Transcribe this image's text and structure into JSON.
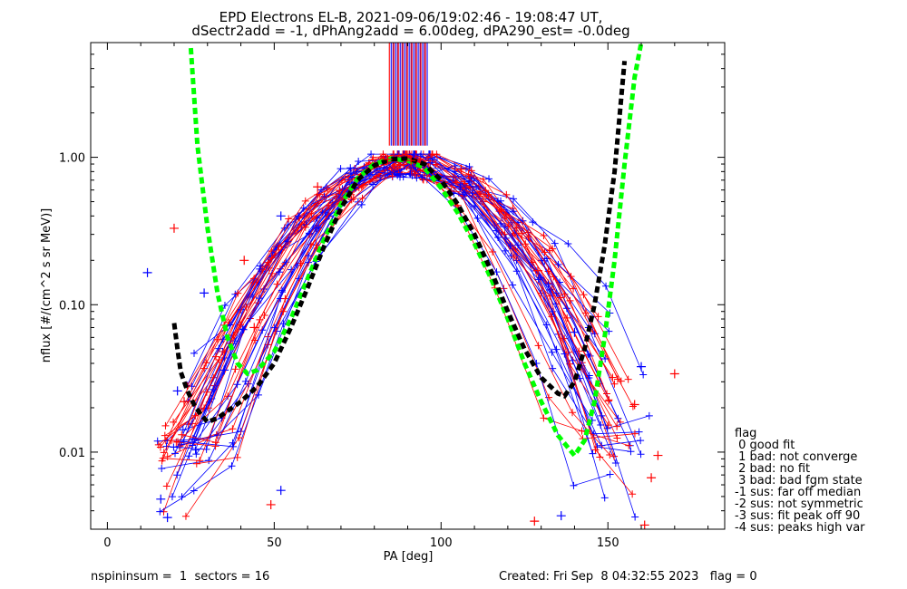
{
  "chart_data": {
    "type": "line",
    "title": "EPD Electrons EL-B, 2021-09-06/19:02:46 - 19:08:47 UT,",
    "subtitle": "dSectr2add = -1, dPhAng2add = 6.00deg, dPA290_est=  -0.0deg",
    "xlabel": "PA [deg]",
    "ylabel": "nflux [#/(cm^2 s sr MeV)]",
    "xlim": [
      -5,
      185
    ],
    "ylim": [
      0.003,
      6.0
    ],
    "y_scale": "log",
    "x_ticks": [
      0,
      50,
      100,
      150
    ],
    "x_tick_labels": [
      "0",
      "50",
      "100",
      "150"
    ],
    "y_ticks": [
      0.01,
      0.1,
      1.0
    ],
    "y_tick_labels": [
      "0.01",
      "0.10",
      "1.00"
    ],
    "colors": {
      "blue": "#0000ff",
      "red": "#ff0000",
      "green": "#00ff00",
      "black": "#000000",
      "purple": "#7f007f"
    },
    "series": [
      {
        "color": "green",
        "style": "dashed",
        "x": [
          25,
          27,
          30,
          33,
          36,
          39,
          42,
          45,
          50,
          55,
          60,
          65,
          70,
          75,
          80,
          85,
          90,
          95,
          100,
          105,
          110,
          115,
          120,
          125,
          130,
          135,
          140,
          143,
          146,
          149,
          152,
          155,
          158,
          160
        ],
        "y": [
          5.5,
          1.2,
          0.33,
          0.12,
          0.06,
          0.04,
          0.034,
          0.036,
          0.048,
          0.08,
          0.15,
          0.28,
          0.48,
          0.72,
          0.9,
          0.98,
          0.95,
          0.85,
          0.62,
          0.42,
          0.26,
          0.15,
          0.08,
          0.04,
          0.022,
          0.013,
          0.0095,
          0.012,
          0.022,
          0.06,
          0.2,
          0.9,
          3.5,
          6.0
        ]
      },
      {
        "color": "black",
        "style": "dashed",
        "x": [
          20,
          21,
          22,
          24,
          26,
          28,
          30,
          33,
          36,
          40,
          45,
          50,
          55,
          60,
          65,
          70,
          75,
          80,
          85,
          90,
          95,
          100,
          105,
          110,
          115,
          120,
          125,
          130,
          135,
          137,
          140,
          143,
          146,
          149,
          152,
          155
        ],
        "y": [
          0.075,
          0.05,
          0.035,
          0.026,
          0.021,
          0.018,
          0.016,
          0.017,
          0.019,
          0.022,
          0.028,
          0.04,
          0.07,
          0.13,
          0.25,
          0.45,
          0.7,
          0.88,
          0.97,
          0.98,
          0.9,
          0.7,
          0.48,
          0.3,
          0.17,
          0.09,
          0.05,
          0.032,
          0.025,
          0.024,
          0.03,
          0.05,
          0.1,
          0.25,
          0.8,
          4.5
        ]
      },
      {
        "color": "red",
        "style": "point",
        "x": [
          84
        ],
        "y": [
          0.97
        ]
      },
      {
        "color": "red",
        "style": "point",
        "x": [
          91
        ],
        "y": [
          0.95
        ]
      },
      {
        "color": "blue",
        "style": "point",
        "x": [
          12
        ],
        "y": [
          0.165
        ]
      },
      {
        "color": "blue",
        "style": "point",
        "x": [
          29
        ],
        "y": [
          0.12
        ]
      },
      {
        "color": "red",
        "style": "point",
        "x": [
          20
        ],
        "y": [
          0.33
        ]
      },
      {
        "color": "red",
        "style": "point",
        "x": [
          41
        ],
        "y": [
          0.2
        ]
      },
      {
        "color": "blue",
        "style": "point",
        "x": [
          52
        ],
        "y": [
          0.4
        ]
      },
      {
        "color": "blue",
        "style": "point",
        "x": [
          73
        ],
        "y": [
          0.78
        ]
      },
      {
        "color": "red",
        "style": "point",
        "x": [
          63
        ],
        "y": [
          0.63
        ]
      },
      {
        "color": "red",
        "style": "point",
        "x": [
          106
        ],
        "y": [
          0.83
        ]
      },
      {
        "color": "red",
        "style": "point",
        "x": [
          129
        ],
        "y": [
          0.17
        ]
      },
      {
        "color": "red",
        "style": "point",
        "x": [
          170
        ],
        "y": [
          0.034
        ]
      },
      {
        "color": "blue",
        "style": "point",
        "x": [
          160
        ],
        "y": [
          0.038
        ]
      },
      {
        "color": "blue",
        "style": "point",
        "x": [
          140
        ],
        "y": [
          0.065
        ]
      },
      {
        "color": "red",
        "style": "point",
        "x": [
          158
        ],
        "y": [
          0.021
        ]
      },
      {
        "color": "red",
        "style": "point",
        "x": [
          165
        ],
        "y": [
          0.0095
        ]
      },
      {
        "color": "red",
        "style": "point",
        "x": [
          163
        ],
        "y": [
          0.0067
        ]
      },
      {
        "color": "red",
        "style": "point",
        "x": [
          161
        ],
        "y": [
          0.0032
        ]
      },
      {
        "color": "blue",
        "style": "point",
        "x": [
          136
        ],
        "y": [
          0.0037
        ]
      },
      {
        "color": "red",
        "style": "point",
        "x": [
          128
        ],
        "y": [
          0.0034
        ]
      },
      {
        "color": "blue",
        "style": "point",
        "x": [
          18
        ],
        "y": [
          0.0036
        ]
      },
      {
        "color": "blue",
        "style": "point",
        "x": [
          16
        ],
        "y": [
          0.0048
        ]
      },
      {
        "color": "blue",
        "style": "point",
        "x": [
          21
        ],
        "y": [
          0.026
        ]
      },
      {
        "color": "red",
        "style": "point",
        "x": [
          23
        ],
        "y": [
          0.022
        ]
      },
      {
        "color": "blue",
        "style": "point",
        "x": [
          35
        ],
        "y": [
          0.036
        ]
      },
      {
        "color": "red",
        "style": "point",
        "x": [
          44
        ],
        "y": [
          0.07
        ]
      },
      {
        "color": "blue",
        "style": "point",
        "x": [
          52
        ],
        "y": [
          0.0055
        ]
      },
      {
        "color": "red",
        "style": "point",
        "x": [
          49
        ],
        "y": [
          0.0044
        ]
      }
    ]
  },
  "legend": {
    "title": "flag",
    "items": [
      " 0 good fit",
      " 1 bad: not converge",
      " 2 bad: no fit",
      " 3 bad: bad fgm state",
      "-1 sus: far off median",
      "-2 sus: not symmetric",
      "-3 sus: fit peak off 90",
      "-4 sus: peaks high var"
    ]
  },
  "footer": {
    "left": "nspininsum =  1  sectors = 16",
    "right": "Created: Fri Sep  8 04:32:55 2023   flag = 0"
  }
}
